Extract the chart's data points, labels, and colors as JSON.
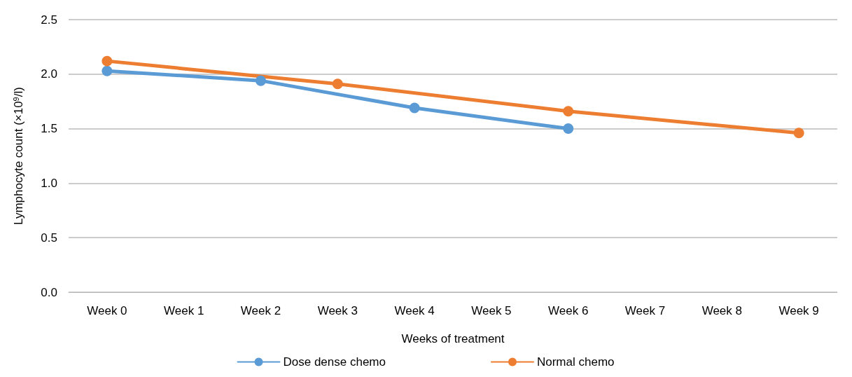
{
  "chart_data": {
    "type": "line",
    "xlabel": "Weeks of treatment",
    "ylabel": "Lymphocyte count (×10$^{9}$/l)",
    "categories": [
      "Week 0",
      "Week 1",
      "Week 2",
      "Week 3",
      "Week 4",
      "Week 5",
      "Week 6",
      "Week 7",
      "Week 8",
      "Week 9"
    ],
    "series": [
      {
        "name": "Dose dense chemo",
        "color": "#5b9bd5",
        "values": [
          2.03,
          null,
          1.94,
          null,
          1.69,
          null,
          1.5,
          null,
          null,
          null
        ]
      },
      {
        "name": "Normal chemo",
        "color": "#ed7d31",
        "values": [
          2.12,
          null,
          null,
          1.91,
          null,
          null,
          1.66,
          null,
          null,
          1.46
        ]
      }
    ],
    "ylim": [
      0,
      2.5
    ],
    "yticks": [
      {
        "value": 0,
        "label": "0.0"
      },
      0.5,
      {
        "value": 1,
        "label": "1.0"
      },
      1.5,
      {
        "value": 2,
        "label": "2.0"
      },
      2.5
    ],
    "grid": "y",
    "legend": "bottom",
    "marker": "circle",
    "line_style": "solid"
  }
}
